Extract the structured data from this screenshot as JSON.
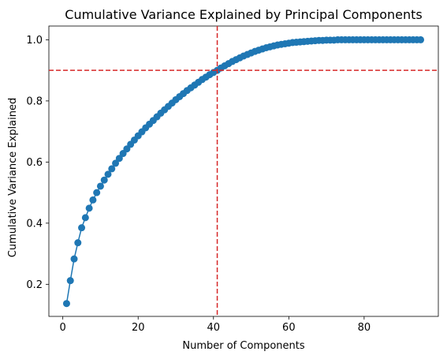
{
  "chart_data": {
    "type": "line",
    "title": "Cumulative Variance Explained by Principal Components",
    "xlabel": "Number of Components",
    "ylabel": "Cumulative Variance Explained",
    "xlim": [
      -3.7,
      99.7
    ],
    "ylim": [
      0.095,
      1.045
    ],
    "xticks": [
      0,
      20,
      40,
      60,
      80
    ],
    "yticks": [
      0.2,
      0.4,
      0.6,
      0.8,
      1.0
    ],
    "xtick_labels": [
      "0",
      "20",
      "40",
      "60",
      "80"
    ],
    "ytick_labels": [
      "0.2",
      "0.4",
      "0.6",
      "0.8",
      "1.0"
    ],
    "grid": false,
    "series": [
      {
        "color": "#1f77b4",
        "marker": "circle",
        "x": [
          1,
          2,
          3,
          4,
          5,
          6,
          7,
          8,
          9,
          10,
          11,
          12,
          13,
          14,
          15,
          16,
          17,
          18,
          19,
          20,
          21,
          22,
          23,
          24,
          25,
          26,
          27,
          28,
          29,
          30,
          31,
          32,
          33,
          34,
          35,
          36,
          37,
          38,
          39,
          40,
          41,
          42,
          43,
          44,
          45,
          46,
          47,
          48,
          49,
          50,
          51,
          52,
          53,
          54,
          55,
          56,
          57,
          58,
          59,
          60,
          61,
          62,
          63,
          64,
          65,
          66,
          67,
          68,
          69,
          70,
          71,
          72,
          73,
          74,
          75,
          76,
          77,
          78,
          79,
          80,
          81,
          82,
          83,
          84,
          85,
          86,
          87,
          88,
          89,
          90,
          91,
          92,
          93,
          94,
          95
        ],
        "y": [
          0.137,
          0.212,
          0.283,
          0.336,
          0.385,
          0.418,
          0.449,
          0.476,
          0.5,
          0.521,
          0.541,
          0.56,
          0.578,
          0.596,
          0.612,
          0.628,
          0.643,
          0.658,
          0.672,
          0.686,
          0.699,
          0.712,
          0.724,
          0.736,
          0.748,
          0.76,
          0.771,
          0.782,
          0.793,
          0.804,
          0.814,
          0.824,
          0.834,
          0.843,
          0.852,
          0.861,
          0.87,
          0.878,
          0.886,
          0.893,
          0.9,
          0.908,
          0.915,
          0.922,
          0.929,
          0.935,
          0.941,
          0.947,
          0.952,
          0.957,
          0.962,
          0.966,
          0.97,
          0.974,
          0.977,
          0.98,
          0.983,
          0.985,
          0.987,
          0.989,
          0.991,
          0.992,
          0.993,
          0.994,
          0.995,
          0.996,
          0.997,
          0.998,
          0.998,
          0.999,
          0.999,
          0.999,
          1.0,
          1.0,
          1.0,
          1.0,
          1.0,
          1.0,
          1.0,
          1.0,
          1.0,
          1.0,
          1.0,
          1.0,
          1.0,
          1.0,
          1.0,
          1.0,
          1.0,
          1.0,
          1.0,
          1.0,
          1.0,
          1.0,
          1.0
        ]
      }
    ],
    "reference_lines": [
      {
        "orientation": "horizontal",
        "value": 0.9,
        "color": "#d62728",
        "style": "dashed"
      },
      {
        "orientation": "vertical",
        "value": 41,
        "color": "#d62728",
        "style": "dashed"
      }
    ]
  }
}
